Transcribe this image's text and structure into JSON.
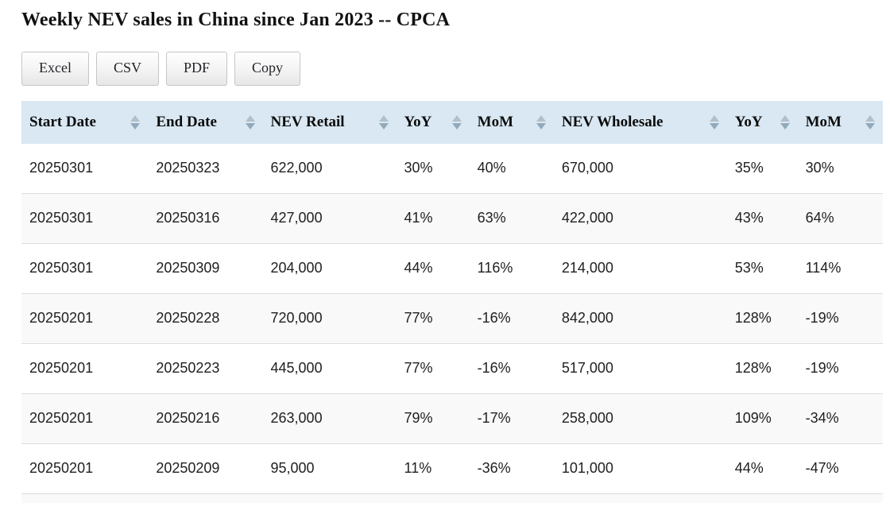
{
  "page": {
    "title": "Weekly NEV sales in China since Jan 2023 -- CPCA"
  },
  "toolbar": {
    "buttons": [
      {
        "label": "Excel"
      },
      {
        "label": "CSV"
      },
      {
        "label": "PDF"
      },
      {
        "label": "Copy"
      }
    ]
  },
  "table": {
    "columns": [
      "Start Date",
      "End Date",
      "NEV Retail",
      "YoY",
      "MoM",
      "NEV Wholesale",
      "YoY",
      "MoM"
    ],
    "rows": [
      [
        "20250301",
        "20250323",
        "622,000",
        "30%",
        "40%",
        "670,000",
        "35%",
        "30%"
      ],
      [
        "20250301",
        "20250316",
        "427,000",
        "41%",
        "63%",
        "422,000",
        "43%",
        "64%"
      ],
      [
        "20250301",
        "20250309",
        "204,000",
        "44%",
        "116%",
        "214,000",
        "53%",
        "114%"
      ],
      [
        "20250201",
        "20250228",
        "720,000",
        "77%",
        "-16%",
        "842,000",
        "128%",
        "-19%"
      ],
      [
        "20250201",
        "20250223",
        "445,000",
        "77%",
        "-16%",
        "517,000",
        "128%",
        "-19%"
      ],
      [
        "20250201",
        "20250216",
        "263,000",
        "79%",
        "-17%",
        "258,000",
        "109%",
        "-34%"
      ],
      [
        "20250201",
        "20250209",
        "95,000",
        "11%",
        "-36%",
        "101,000",
        "44%",
        "-47%"
      ]
    ]
  },
  "colors": {
    "header_bg": "#d9e8f2",
    "stripe_bg": "#f9f9f9",
    "row_border": "#dddddd",
    "sort_arrow_up": "#b3bfc8",
    "sort_arrow_down": "#93a9ba",
    "button_border": "#c6c6c6",
    "title_text": "#111111",
    "cell_text": "#212121"
  }
}
